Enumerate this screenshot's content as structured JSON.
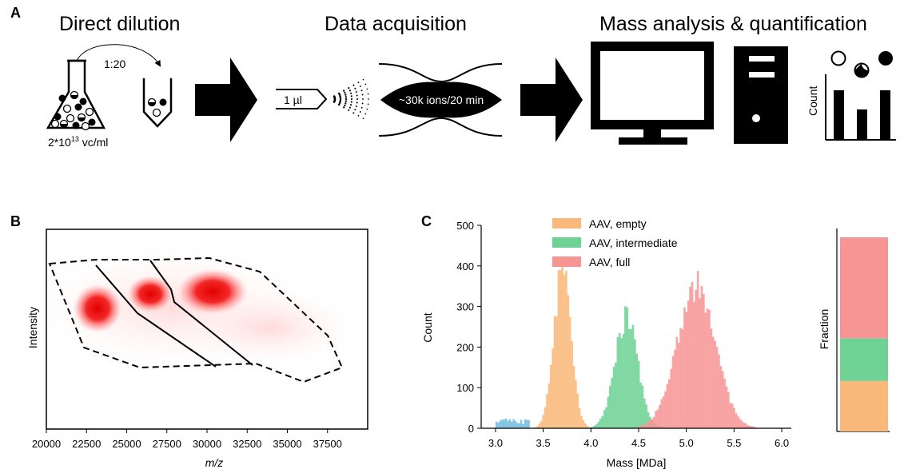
{
  "panel_a": {
    "letter": "A",
    "headers": [
      "Direct dilution",
      "Data acquisition",
      "Mass analysis & quantification"
    ],
    "dilution_ratio": "1:20",
    "concentration_base": "2*10",
    "concentration_exp": "13",
    "concentration_unit": " vc/ml",
    "volume": "1 µl",
    "ion_trap_label": "~30k ions/20 min",
    "count_label": "Count",
    "icons": [
      "flask-icon",
      "tube-icon",
      "arrow-icon",
      "nozzle-icon",
      "spray-icon",
      "ion-trap-icon",
      "monitor-icon",
      "computer-tower-icon",
      "bar-chart-icon"
    ]
  },
  "panel_b": {
    "letter": "B",
    "ylabel": "Intensity",
    "xlabel": "m/z",
    "xticks": [
      "20000",
      "22500",
      "25000",
      "27500",
      "30000",
      "32500",
      "35000",
      "37500"
    ]
  },
  "panel_c": {
    "letter": "C",
    "colors": {
      "empty": "#f9b97a",
      "intermediate": "#6dd294",
      "full": "#f79595",
      "background": "#5bb0d9"
    },
    "legend": [
      "AAV, empty",
      "AAV, intermediate",
      "AAV, full"
    ],
    "fraction_label": "Fraction"
  },
  "chart_data": [
    {
      "type": "heatmap",
      "title": "",
      "xlabel": "m/z",
      "ylabel": "Intensity",
      "xlim": [
        20000,
        40000
      ],
      "xticks": [
        20000,
        22500,
        25000,
        27500,
        30000,
        32500,
        35000,
        37500
      ],
      "clusters_center_mz": [
        23200,
        26800,
        30300
      ]
    },
    {
      "type": "bar",
      "title": "",
      "xlabel": "Mass [MDa]",
      "ylabel": "Count",
      "xlim": [
        2.85,
        6.1
      ],
      "ylim": [
        0,
        500
      ],
      "xticks": [
        3.0,
        3.5,
        4.0,
        4.5,
        5.0,
        5.5,
        6.0
      ],
      "yticks": [
        0,
        100,
        200,
        300,
        400,
        500
      ],
      "legend_position": "top-center",
      "series": [
        {
          "name": "AAV, empty",
          "color": "#f9b97a",
          "peak_center": 3.7,
          "peak_height": 385,
          "peak_sd": 0.09
        },
        {
          "name": "AAV, intermediate",
          "color": "#6dd294",
          "peak_center": 4.37,
          "peak_height": 270,
          "peak_sd": 0.12
        },
        {
          "name": "AAV, full",
          "color": "#f79595",
          "peak_center": 5.1,
          "peak_height": 350,
          "peak_sd": 0.2
        }
      ]
    },
    {
      "type": "bar",
      "title": "",
      "ylabel": "Fraction",
      "stacked": true,
      "series": [
        {
          "name": "AAV, empty",
          "value": 0.26
        },
        {
          "name": "AAV, intermediate",
          "value": 0.22
        },
        {
          "name": "AAV, full",
          "value": 0.52
        }
      ]
    }
  ]
}
